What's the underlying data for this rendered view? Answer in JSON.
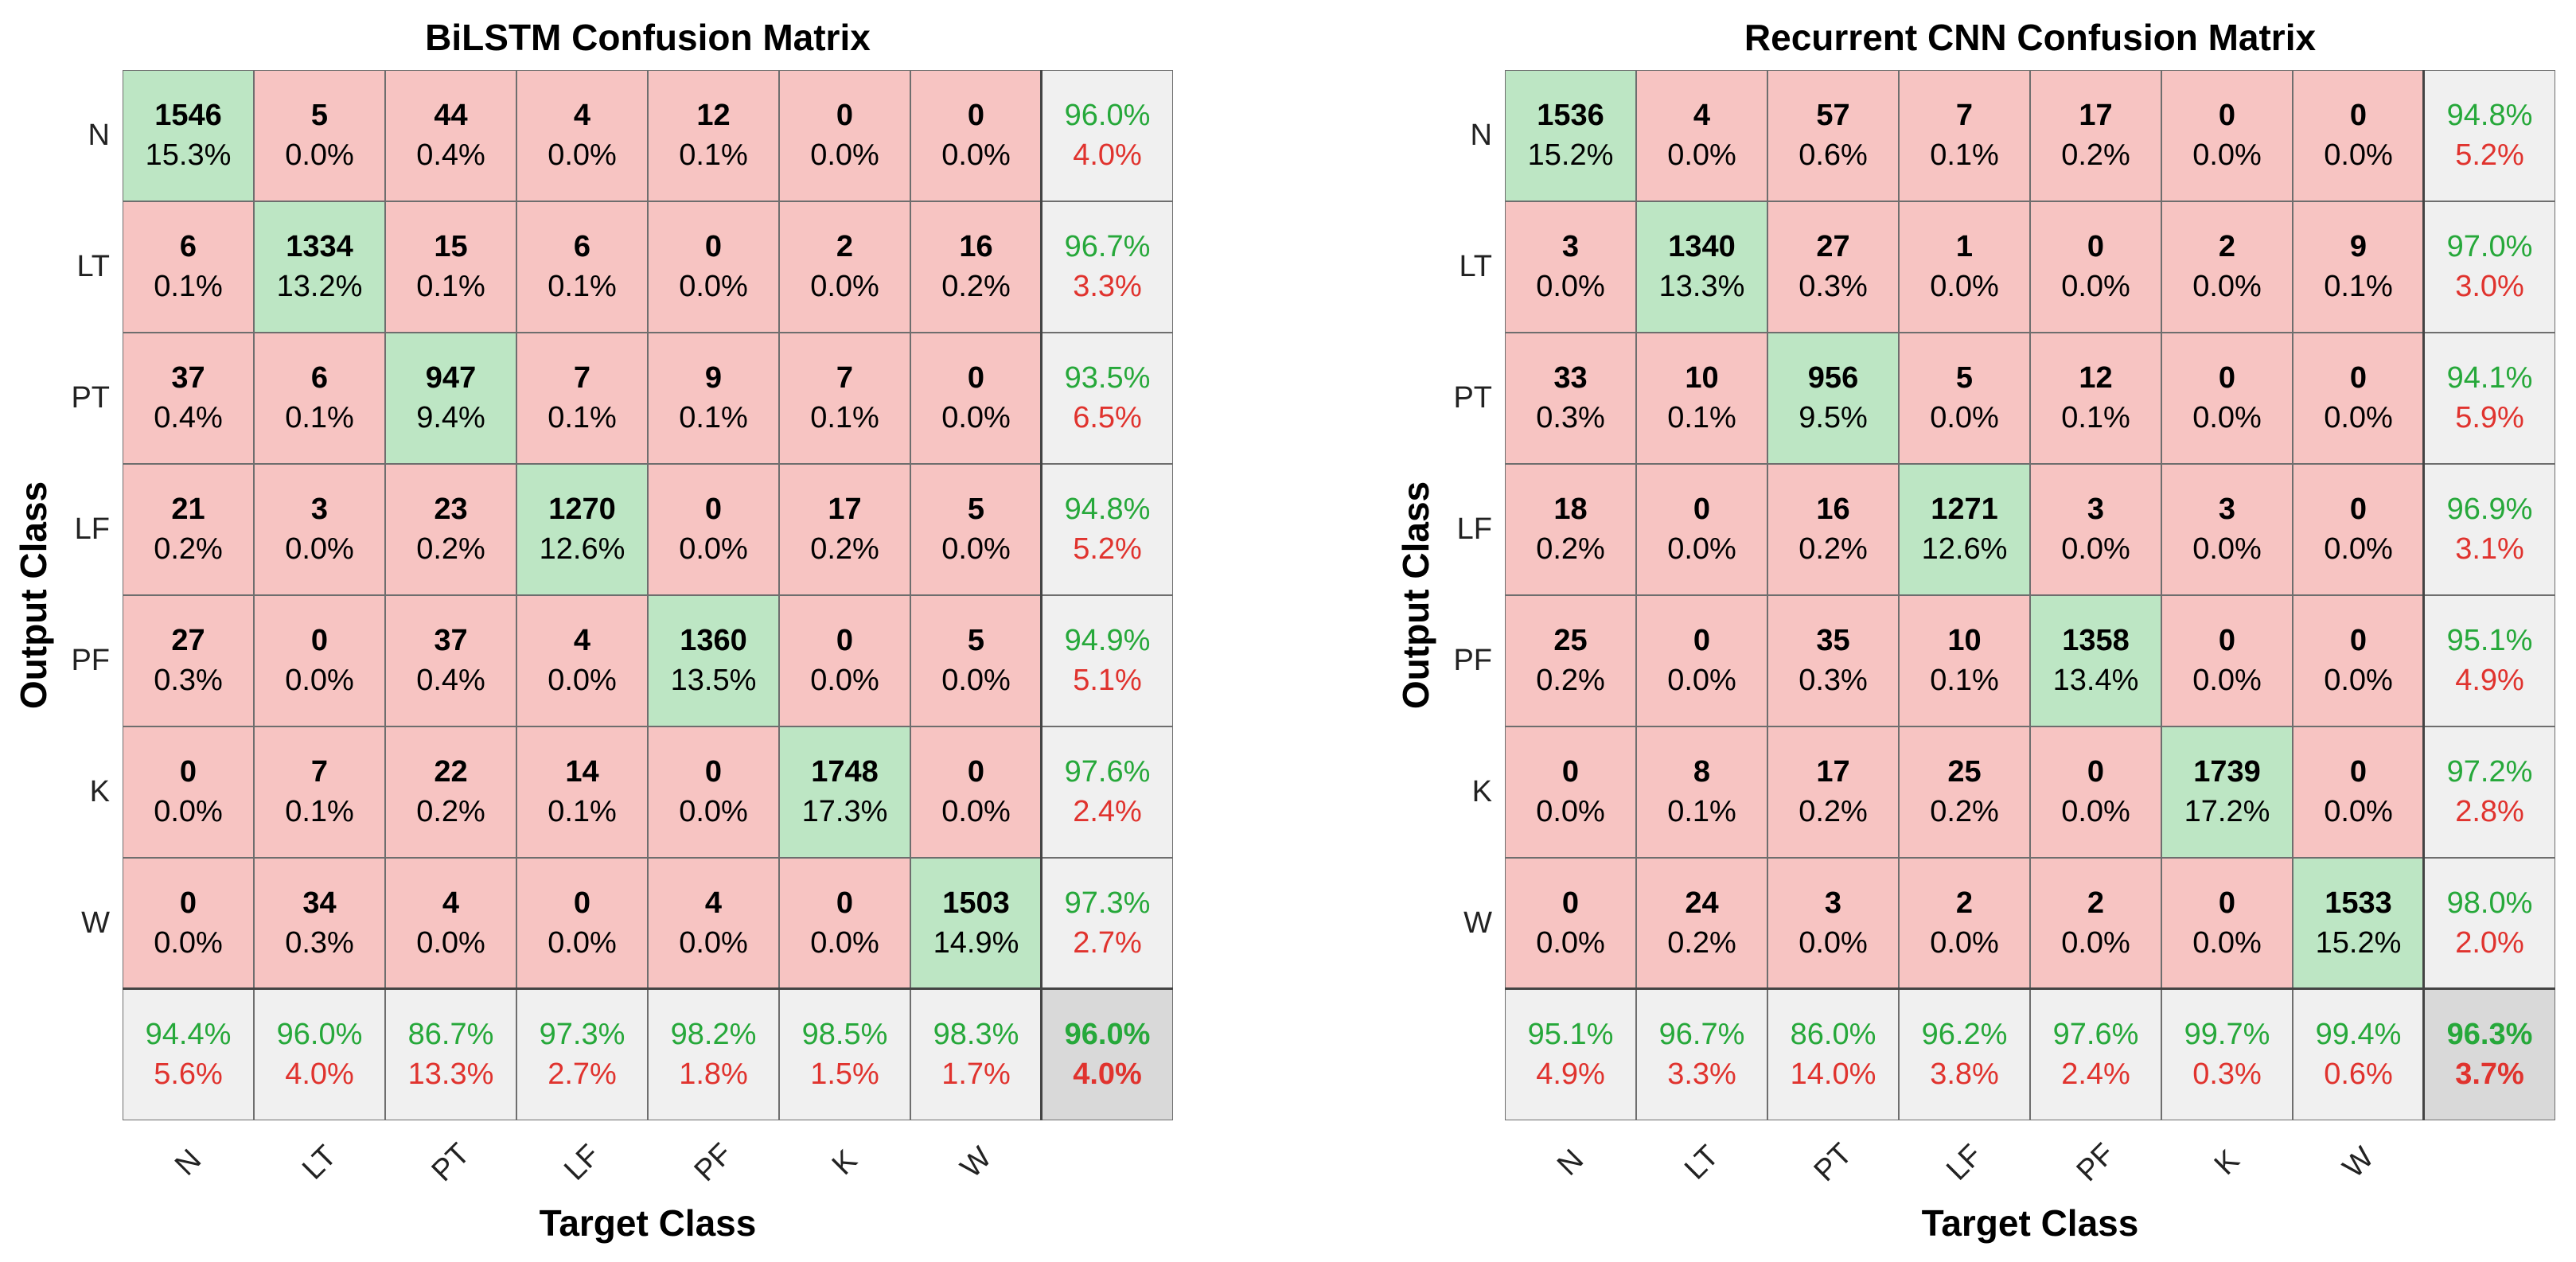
{
  "chart_data": [
    {
      "type": "table",
      "title": "BiLSTM Confusion Matrix",
      "xlabel": "Target Class",
      "ylabel": "Output Class",
      "classes": [
        "N",
        "LT",
        "PT",
        "LF",
        "PF",
        "K",
        "W"
      ],
      "counts": [
        [
          1546,
          5,
          44,
          4,
          12,
          0,
          0
        ],
        [
          6,
          1334,
          15,
          6,
          0,
          2,
          16
        ],
        [
          37,
          6,
          947,
          7,
          9,
          7,
          0
        ],
        [
          21,
          3,
          23,
          1270,
          0,
          17,
          5
        ],
        [
          27,
          0,
          37,
          4,
          1360,
          0,
          5
        ],
        [
          0,
          7,
          22,
          14,
          0,
          1748,
          0
        ],
        [
          0,
          34,
          4,
          0,
          4,
          0,
          1503
        ]
      ],
      "percents": [
        [
          "15.3%",
          "0.0%",
          "0.4%",
          "0.0%",
          "0.1%",
          "0.0%",
          "0.0%"
        ],
        [
          "0.1%",
          "13.2%",
          "0.1%",
          "0.1%",
          "0.0%",
          "0.0%",
          "0.2%"
        ],
        [
          "0.4%",
          "0.1%",
          "9.4%",
          "0.1%",
          "0.1%",
          "0.1%",
          "0.0%"
        ],
        [
          "0.2%",
          "0.0%",
          "0.2%",
          "12.6%",
          "0.0%",
          "0.2%",
          "0.0%"
        ],
        [
          "0.3%",
          "0.0%",
          "0.4%",
          "0.0%",
          "13.5%",
          "0.0%",
          "0.0%"
        ],
        [
          "0.0%",
          "0.1%",
          "0.2%",
          "0.1%",
          "0.0%",
          "17.3%",
          "0.0%"
        ],
        [
          "0.0%",
          "0.3%",
          "0.0%",
          "0.0%",
          "0.0%",
          "0.0%",
          "14.9%"
        ]
      ],
      "row_summary": [
        [
          "96.0%",
          "4.0%"
        ],
        [
          "96.7%",
          "3.3%"
        ],
        [
          "93.5%",
          "6.5%"
        ],
        [
          "94.8%",
          "5.2%"
        ],
        [
          "94.9%",
          "5.1%"
        ],
        [
          "97.6%",
          "2.4%"
        ],
        [
          "97.3%",
          "2.7%"
        ]
      ],
      "col_summary": [
        [
          "94.4%",
          "5.6%"
        ],
        [
          "96.0%",
          "4.0%"
        ],
        [
          "86.7%",
          "13.3%"
        ],
        [
          "97.3%",
          "2.7%"
        ],
        [
          "98.2%",
          "1.8%"
        ],
        [
          "98.5%",
          "1.5%"
        ],
        [
          "98.3%",
          "1.7%"
        ]
      ],
      "overall": [
        "96.0%",
        "4.0%"
      ]
    },
    {
      "type": "table",
      "title": "Recurrent CNN Confusion Matrix",
      "xlabel": "Target Class",
      "ylabel": "Output Class",
      "classes": [
        "N",
        "LT",
        "PT",
        "LF",
        "PF",
        "K",
        "W"
      ],
      "counts": [
        [
          1536,
          4,
          57,
          7,
          17,
          0,
          0
        ],
        [
          3,
          1340,
          27,
          1,
          0,
          2,
          9
        ],
        [
          33,
          10,
          956,
          5,
          12,
          0,
          0
        ],
        [
          18,
          0,
          16,
          1271,
          3,
          3,
          0
        ],
        [
          25,
          0,
          35,
          10,
          1358,
          0,
          0
        ],
        [
          0,
          8,
          17,
          25,
          0,
          1739,
          0
        ],
        [
          0,
          24,
          3,
          2,
          2,
          0,
          1533
        ]
      ],
      "percents": [
        [
          "15.2%",
          "0.0%",
          "0.6%",
          "0.1%",
          "0.2%",
          "0.0%",
          "0.0%"
        ],
        [
          "0.0%",
          "13.3%",
          "0.3%",
          "0.0%",
          "0.0%",
          "0.0%",
          "0.1%"
        ],
        [
          "0.3%",
          "0.1%",
          "9.5%",
          "0.0%",
          "0.1%",
          "0.0%",
          "0.0%"
        ],
        [
          "0.2%",
          "0.0%",
          "0.2%",
          "12.6%",
          "0.0%",
          "0.0%",
          "0.0%"
        ],
        [
          "0.2%",
          "0.0%",
          "0.3%",
          "0.1%",
          "13.4%",
          "0.0%",
          "0.0%"
        ],
        [
          "0.0%",
          "0.1%",
          "0.2%",
          "0.2%",
          "0.0%",
          "17.2%",
          "0.0%"
        ],
        [
          "0.0%",
          "0.2%",
          "0.0%",
          "0.0%",
          "0.0%",
          "0.0%",
          "15.2%"
        ]
      ],
      "row_summary": [
        [
          "94.8%",
          "5.2%"
        ],
        [
          "97.0%",
          "3.0%"
        ],
        [
          "94.1%",
          "5.9%"
        ],
        [
          "96.9%",
          "3.1%"
        ],
        [
          "95.1%",
          "4.9%"
        ],
        [
          "97.2%",
          "2.8%"
        ],
        [
          "98.0%",
          "2.0%"
        ]
      ],
      "col_summary": [
        [
          "95.1%",
          "4.9%"
        ],
        [
          "96.7%",
          "3.3%"
        ],
        [
          "86.0%",
          "14.0%"
        ],
        [
          "96.2%",
          "3.8%"
        ],
        [
          "97.6%",
          "2.4%"
        ],
        [
          "99.7%",
          "0.3%"
        ],
        [
          "99.4%",
          "0.6%"
        ]
      ],
      "overall": [
        "96.3%",
        "3.7%"
      ]
    }
  ],
  "colors": {
    "diagonal": "#bde6c4",
    "off_diagonal": "#f7c4c2",
    "summary": "#f0f0f0",
    "total": "#d9d9d9",
    "good_text": "#26a83a",
    "bad_text": "#e0332e"
  }
}
